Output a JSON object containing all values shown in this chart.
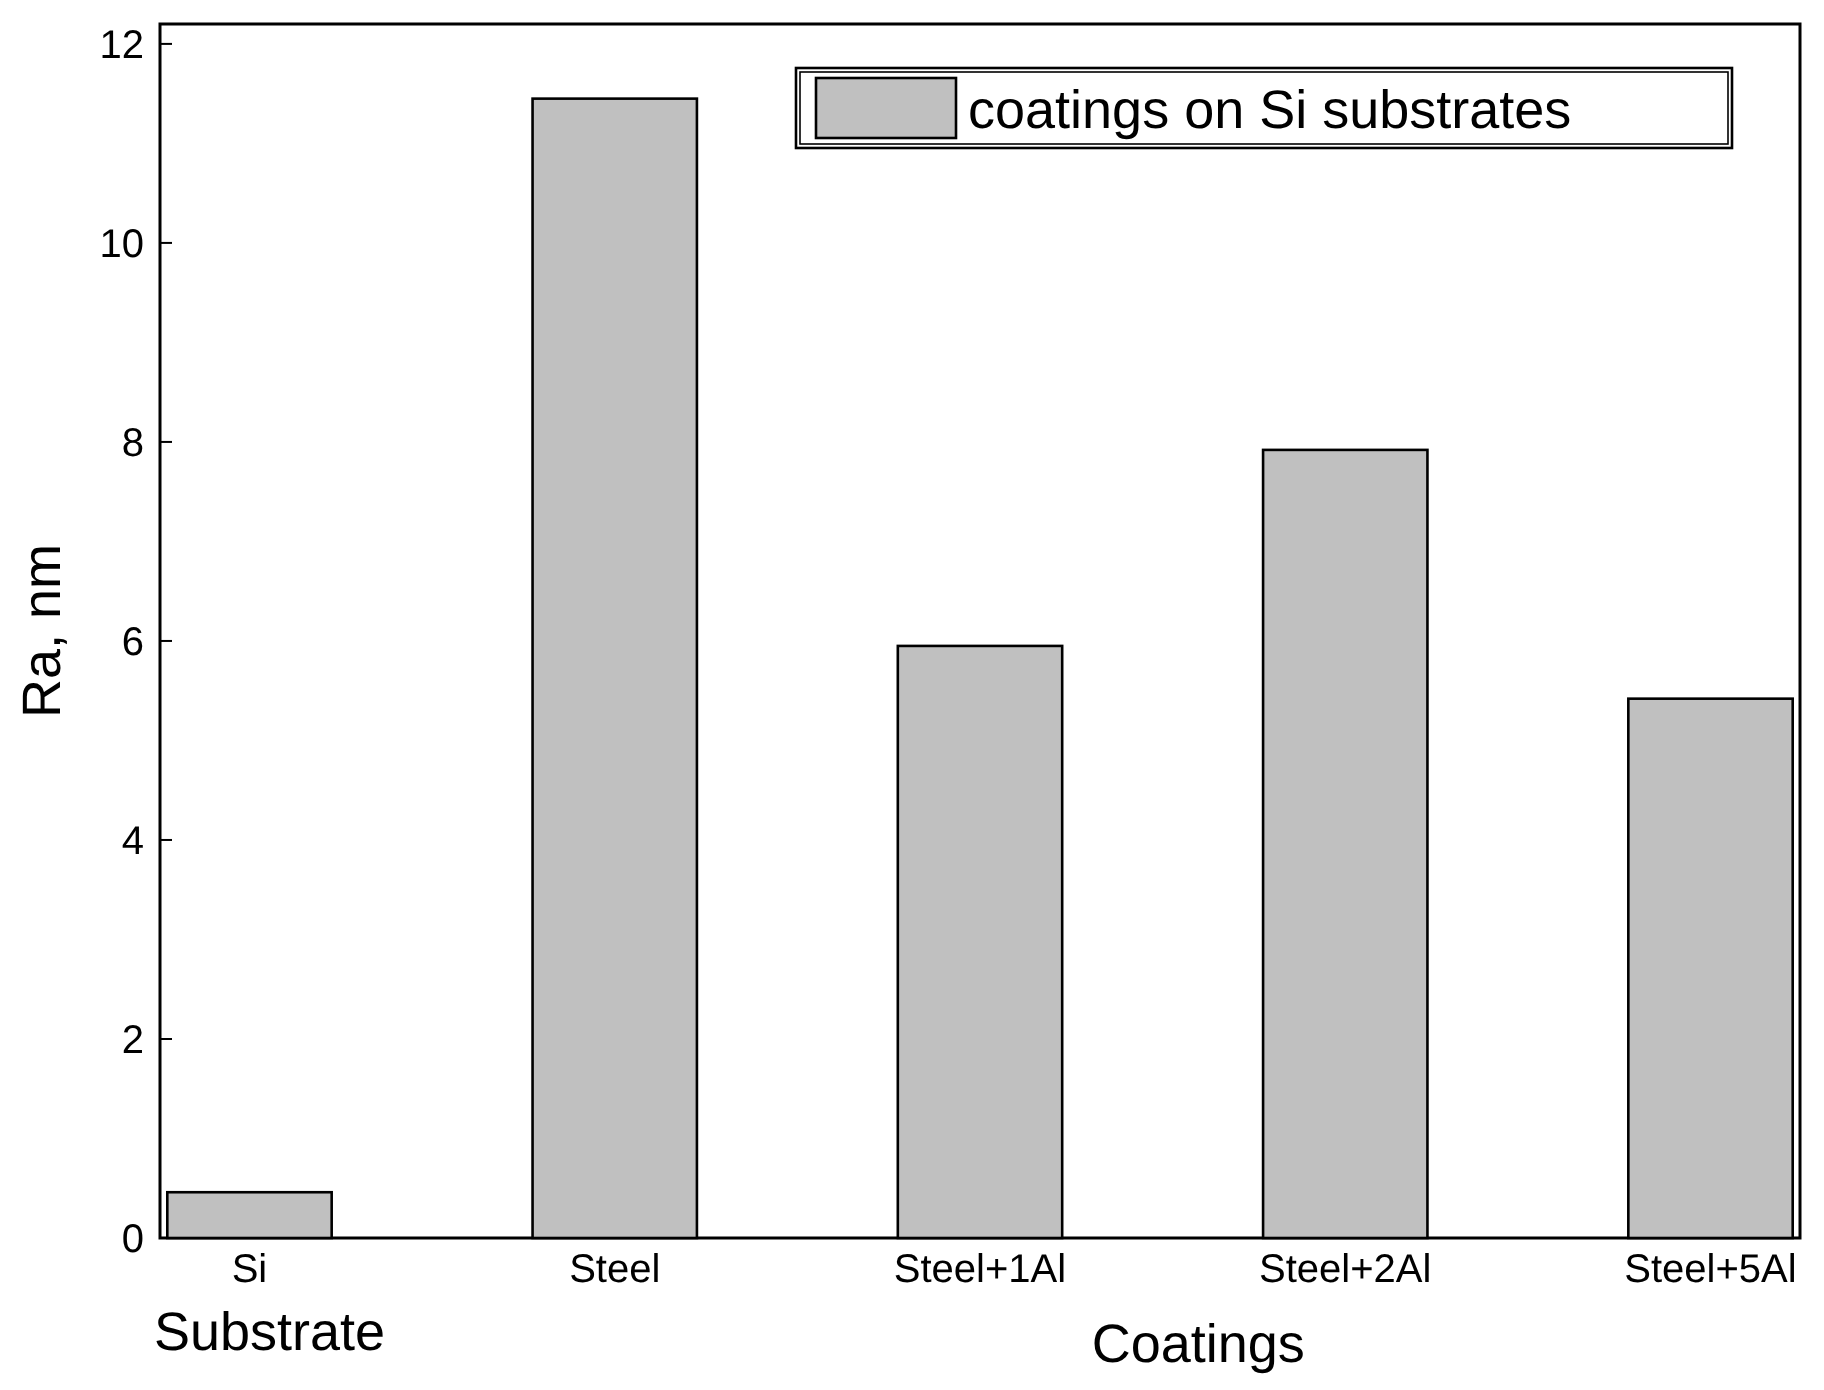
{
  "chart_data": {
    "type": "bar",
    "ylabel": "Ra, nm",
    "xlabel": "Coatings",
    "categories": [
      "Si",
      "Steel",
      "Steel+1Al",
      "Steel+2Al",
      "Steel+5Al"
    ],
    "series": [
      {
        "name": "coatings on Si substrates",
        "color": "#c0c0c0",
        "values": [
          0.46,
          11.45,
          5.95,
          7.92,
          5.42
        ]
      }
    ],
    "ylim": [
      0,
      12.2
    ],
    "yticks": [
      0,
      2,
      4,
      6,
      8,
      10,
      12
    ],
    "grid": false,
    "legend": "top right",
    "annotations": [
      "Substrate"
    ]
  }
}
